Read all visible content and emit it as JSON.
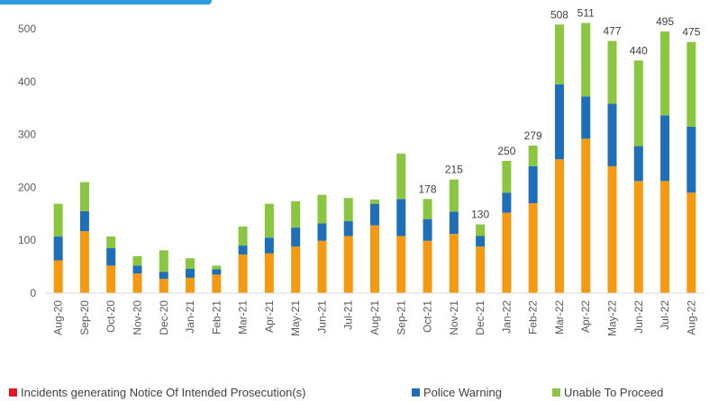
{
  "chart_data": {
    "type": "bar",
    "stacked": true,
    "title": "",
    "xlabel": "",
    "ylabel": "",
    "ylim": [
      0,
      500
    ],
    "yticks": [
      0,
      100,
      200,
      300,
      400,
      500
    ],
    "grid": false,
    "legend_position": "bottom",
    "categories": [
      "Aug-20",
      "Sep-20",
      "Oct-20",
      "Nov-20",
      "Dec-20",
      "Jan-21",
      "Feb-21",
      "Mar-21",
      "Apr-21",
      "May-21",
      "Jun-21",
      "Jul-21",
      "Aug-21",
      "Sep-21",
      "Oct-21",
      "Nov-21",
      "Dec-21",
      "Jan-22",
      "Feb-22",
      "Mar-22",
      "Apr-22",
      "May-22",
      "Jun-22",
      "Jul-22",
      "Aug-22"
    ],
    "series": [
      {
        "name": "Incidents generating Notice Of Intended Prosecution(s)",
        "color": "#f59a10",
        "values": [
          62,
          117,
          52,
          37,
          27,
          29,
          35,
          73,
          75,
          88,
          99,
          108,
          128,
          108,
          99,
          112,
          88,
          152,
          170,
          253,
          292,
          240,
          212,
          212,
          190
        ]
      },
      {
        "name": "Police Warning",
        "color": "#1f6fb8",
        "values": [
          45,
          38,
          33,
          15,
          13,
          17,
          10,
          17,
          30,
          36,
          33,
          28,
          41,
          70,
          41,
          42,
          20,
          38,
          70,
          142,
          80,
          118,
          66,
          124,
          125
        ]
      },
      {
        "name": "Unable To Proceed",
        "color": "#8ac63f",
        "values": [
          62,
          55,
          22,
          18,
          41,
          20,
          7,
          36,
          64,
          50,
          54,
          44,
          8,
          86,
          38,
          61,
          22,
          60,
          39,
          113,
          139,
          119,
          162,
          159,
          160
        ]
      }
    ],
    "data_labels": [
      {
        "category": "Oct-21",
        "text": "178"
      },
      {
        "category": "Nov-21",
        "text": "215"
      },
      {
        "category": "Dec-21",
        "text": "130"
      },
      {
        "category": "Jan-22",
        "text": "250"
      },
      {
        "category": "Feb-22",
        "text": "279"
      },
      {
        "category": "Mar-22",
        "text": "508"
      },
      {
        "category": "Apr-22",
        "text": "511"
      },
      {
        "category": "May-22",
        "text": "477"
      },
      {
        "category": "Jun-22",
        "text": "440"
      },
      {
        "category": "Jul-22",
        "text": "495"
      },
      {
        "category": "Aug-22",
        "text": "475"
      }
    ]
  }
}
